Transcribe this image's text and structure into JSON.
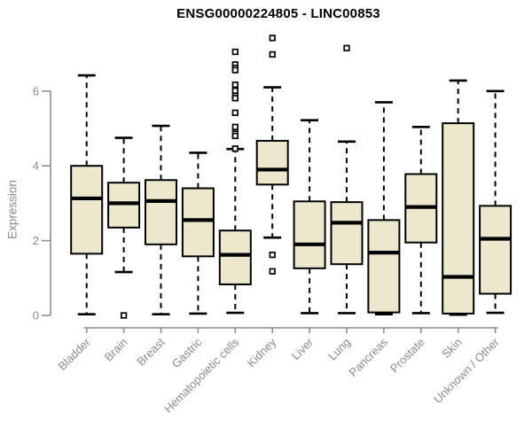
{
  "chart_data": {
    "type": "boxplot",
    "title": "ENSG00000224805 - LINC00853",
    "ylabel": "Expression",
    "xlabel": "",
    "y_ticks": [
      0,
      2,
      4,
      6
    ],
    "ylim": [
      -0.2,
      7.6
    ],
    "grid": false,
    "legend_position": "none",
    "colors": {
      "box_fill": "#EDE8CD",
      "box_border": "#000000",
      "median": "#000000",
      "whisker": "#000000",
      "axis": "#8C8C8C",
      "tick_labels": "#8A8A8A",
      "title": "#000000",
      "outlier_fill": "#FFFFFF"
    },
    "categories": [
      "Bladder",
      "Brain",
      "Breast",
      "Gastric",
      "Hematopoietic cells",
      "Kidney",
      "Liver",
      "Lung",
      "Pancreas",
      "Prostate",
      "Skin",
      "Unknown / Other"
    ],
    "boxes": [
      {
        "category": "Bladder",
        "whisker_low": 0.03,
        "q1": 1.65,
        "median": 3.13,
        "q3": 4.0,
        "whisker_high": 6.42,
        "outliers": []
      },
      {
        "category": "Brain",
        "whisker_low": 1.16,
        "q1": 2.35,
        "median": 3.0,
        "q3": 3.55,
        "whisker_high": 4.75,
        "outliers": [
          0.0
        ]
      },
      {
        "category": "Breast",
        "whisker_low": 0.03,
        "q1": 1.9,
        "median": 3.06,
        "q3": 3.62,
        "whisker_high": 5.07,
        "outliers": []
      },
      {
        "category": "Gastric",
        "whisker_low": 0.05,
        "q1": 1.58,
        "median": 2.55,
        "q3": 3.4,
        "whisker_high": 4.35,
        "outliers": []
      },
      {
        "category": "Hematopoietic cells",
        "whisker_low": 0.07,
        "q1": 0.83,
        "median": 1.62,
        "q3": 2.27,
        "whisker_high": 4.45,
        "outliers": [
          7.05,
          6.71,
          6.62,
          6.56,
          6.17,
          6.01,
          5.87,
          5.81,
          5.42,
          5.04,
          4.86,
          4.8,
          4.46
        ]
      },
      {
        "category": "Kidney",
        "whisker_low": 2.08,
        "q1": 3.5,
        "median": 3.9,
        "q3": 4.67,
        "whisker_high": 6.1,
        "outliers": [
          7.42,
          6.98,
          1.62,
          1.18
        ]
      },
      {
        "category": "Liver",
        "whisker_low": 0.06,
        "q1": 1.26,
        "median": 1.9,
        "q3": 3.05,
        "whisker_high": 5.22,
        "outliers": []
      },
      {
        "category": "Lung",
        "whisker_low": 0.06,
        "q1": 1.37,
        "median": 2.48,
        "q3": 3.03,
        "whisker_high": 4.65,
        "outliers": [
          7.15
        ]
      },
      {
        "category": "Pancreas",
        "whisker_low": 0.03,
        "q1": 0.08,
        "median": 1.68,
        "q3": 2.55,
        "whisker_high": 5.7,
        "outliers": []
      },
      {
        "category": "Prostate",
        "whisker_low": 0.06,
        "q1": 1.95,
        "median": 2.9,
        "q3": 3.78,
        "whisker_high": 5.04,
        "outliers": []
      },
      {
        "category": "Skin",
        "whisker_low": 0.02,
        "q1": 0.05,
        "median": 1.03,
        "q3": 5.14,
        "whisker_high": 6.28,
        "outliers": []
      },
      {
        "category": "Unknown / Other",
        "whisker_low": 0.07,
        "q1": 0.58,
        "median": 2.05,
        "q3": 2.93,
        "whisker_high": 6.0,
        "outliers": []
      }
    ]
  }
}
